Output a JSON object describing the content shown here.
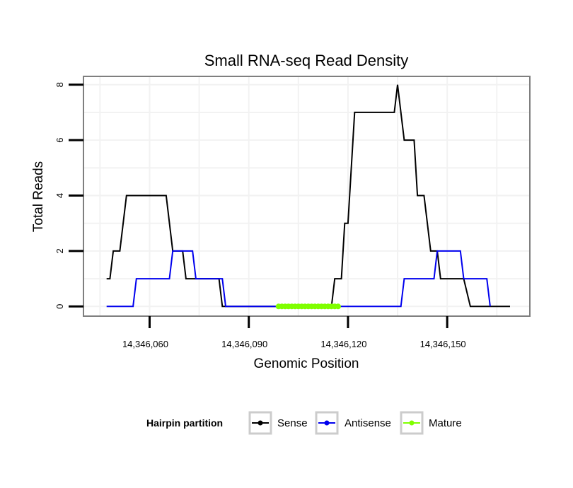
{
  "chart_data": {
    "type": "line",
    "title": "Small RNA-seq Read Density",
    "xlabel": "Genomic Position",
    "ylabel": "Total Reads",
    "xlim": [
      14346040,
      14346175
    ],
    "ylim": [
      -0.35,
      8.3
    ],
    "x_ticks": [
      {
        "value": 14346060,
        "label": "14,346,060"
      },
      {
        "value": 14346090,
        "label": "14,346,090"
      },
      {
        "value": 14346120,
        "label": "14,346,120"
      },
      {
        "value": 14346150,
        "label": "14,346,150"
      }
    ],
    "y_ticks": [
      {
        "value": 0,
        "label": "0"
      },
      {
        "value": 2,
        "label": "2"
      },
      {
        "value": 4,
        "label": "4"
      },
      {
        "value": 6,
        "label": "6"
      },
      {
        "value": 8,
        "label": "8"
      }
    ],
    "grid": true,
    "legend_position": "bottom",
    "legend": {
      "title": "Hairpin partition",
      "entries": [
        "Sense",
        "Antisense",
        "Mature"
      ]
    },
    "series": [
      {
        "name": "Sense",
        "color": "#000000",
        "points": [
          [
            14346047,
            1
          ],
          [
            14346048,
            1
          ],
          [
            14346049,
            2
          ],
          [
            14346051,
            2
          ],
          [
            14346053,
            4
          ],
          [
            14346065,
            4
          ],
          [
            14346067,
            2
          ],
          [
            14346070,
            2
          ],
          [
            14346071,
            1
          ],
          [
            14346081,
            1
          ],
          [
            14346082,
            0
          ],
          [
            14346115,
            0
          ],
          [
            14346116,
            1
          ],
          [
            14346118,
            1
          ],
          [
            14346119,
            3
          ],
          [
            14346120,
            3
          ],
          [
            14346122,
            7
          ],
          [
            14346134,
            7
          ],
          [
            14346135,
            8
          ],
          [
            14346137,
            6
          ],
          [
            14346140,
            6
          ],
          [
            14346141,
            4
          ],
          [
            14346143,
            4
          ],
          [
            14346145,
            2
          ],
          [
            14346147,
            2
          ],
          [
            14346148,
            1
          ],
          [
            14346155,
            1
          ],
          [
            14346157,
            0
          ],
          [
            14346169,
            0
          ]
        ]
      },
      {
        "name": "Antisense",
        "color": "#0000ee",
        "points": [
          [
            14346047,
            0
          ],
          [
            14346055,
            0
          ],
          [
            14346056,
            1
          ],
          [
            14346066,
            1
          ],
          [
            14346067,
            2
          ],
          [
            14346073,
            2
          ],
          [
            14346074,
            1
          ],
          [
            14346082,
            1
          ],
          [
            14346083,
            0
          ],
          [
            14346136,
            0
          ],
          [
            14346137,
            1
          ],
          [
            14346146,
            1
          ],
          [
            14346147,
            2
          ],
          [
            14346154,
            2
          ],
          [
            14346155,
            1
          ],
          [
            14346162,
            1
          ],
          [
            14346163,
            0
          ]
        ]
      },
      {
        "name": "Mature",
        "color": "#7fff00",
        "points": [
          [
            14346099,
            0
          ],
          [
            14346100,
            0
          ],
          [
            14346101,
            0
          ],
          [
            14346102,
            0
          ],
          [
            14346103,
            0
          ],
          [
            14346104,
            0
          ],
          [
            14346105,
            0
          ],
          [
            14346106,
            0
          ],
          [
            14346107,
            0
          ],
          [
            14346108,
            0
          ],
          [
            14346109,
            0
          ],
          [
            14346110,
            0
          ],
          [
            14346111,
            0
          ],
          [
            14346112,
            0
          ],
          [
            14346113,
            0
          ],
          [
            14346114,
            0
          ],
          [
            14346115,
            0
          ],
          [
            14346116,
            0
          ],
          [
            14346117,
            0
          ]
        ]
      }
    ]
  }
}
